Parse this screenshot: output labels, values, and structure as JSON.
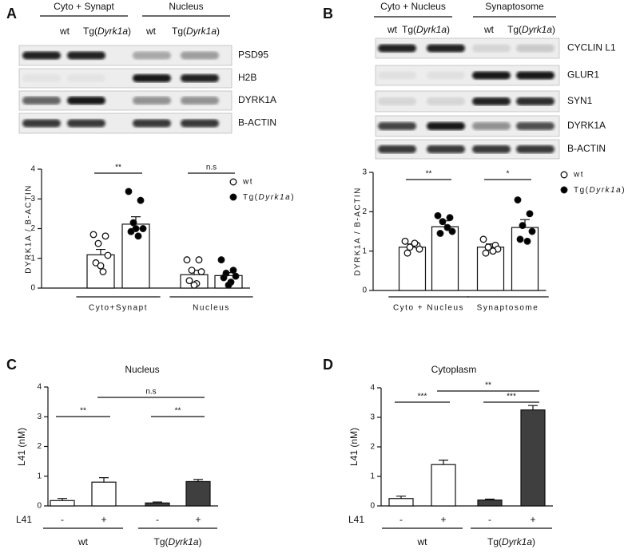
{
  "panel_labels": [
    "A",
    "B",
    "C",
    "D"
  ],
  "blots": [
    {
      "headers": [
        "Cyto + Synapt",
        "Nucleus"
      ],
      "lanes": [
        "wt",
        "Tg(Dyrk1a)",
        "wt",
        "Tg(Dyrk1a)"
      ],
      "rows": [
        "PSD95",
        "H2B",
        "DYRK1A",
        "B-ACTIN"
      ]
    },
    {
      "headers": [
        "Cyto + Nucleus",
        "Synaptosome"
      ],
      "lanes": [
        "wt",
        "Tg(Dyrk1a)",
        "wt",
        "Tg(Dyrk1a)"
      ],
      "rows": [
        "CYCLIN L1",
        "GLUR1",
        "SYN1",
        "DYRK1A",
        "B-ACTIN"
      ]
    }
  ],
  "chart_data": [
    {
      "type": "bar",
      "ylabel": "DYRK1A / B-ACTIN",
      "categories": [
        "Cyto+Synapt",
        "Nucleus"
      ],
      "bar_color": "#ffffff",
      "series": [
        {
          "name": "wt",
          "color": "#ffffff",
          "values": [
            1.12,
            0.45
          ],
          "errors": [
            0.18,
            0.15
          ],
          "points": [
            [
              1.8,
              1.75,
              1.5,
              1.1,
              0.85,
              0.55,
              0.75
            ],
            [
              0.95,
              0.95,
              0.6,
              0.55,
              0.25,
              0.15,
              0.1
            ]
          ]
        },
        {
          "name": "Tg(Dyrk1a)",
          "color": "#000000",
          "values": [
            2.15,
            0.42
          ],
          "errors": [
            0.25,
            0.1
          ],
          "points": [
            [
              3.25,
              2.95,
              2.2,
              2.0,
              1.9,
              1.75,
              2.0
            ],
            [
              0.95,
              0.6,
              0.5,
              0.4,
              0.35,
              0.2,
              0.1
            ]
          ]
        }
      ],
      "ylim": [
        0,
        4
      ],
      "yticks": [
        0,
        1,
        2,
        3,
        4
      ],
      "legend": "right",
      "annotations": [
        {
          "text": "**",
          "between": [
            0,
            1
          ]
        },
        {
          "text": "n.s",
          "between": [
            2,
            3
          ]
        }
      ]
    },
    {
      "type": "bar",
      "ylabel": "DYRK1A / B-ACTIN",
      "categories": [
        "Cyto + Nucleus",
        "Synaptosome"
      ],
      "bar_color": "#ffffff",
      "series": [
        {
          "name": "wt",
          "color": "#ffffff",
          "values": [
            1.1,
            1.1
          ],
          "errors": [
            0.08,
            0.08
          ],
          "points": [
            [
              1.25,
              1.15,
              1.1,
              1.05,
              0.95,
              1.2
            ],
            [
              1.3,
              1.15,
              1.1,
              1.05,
              0.95,
              1.0
            ]
          ]
        },
        {
          "name": "Tg(Dyrk1a)",
          "color": "#000000",
          "values": [
            1.62,
            1.6
          ],
          "errors": [
            0.15,
            0.2
          ],
          "points": [
            [
              1.9,
              1.85,
              1.75,
              1.5,
              1.45,
              1.6
            ],
            [
              2.3,
              1.95,
              1.65,
              1.5,
              1.3,
              1.25
            ]
          ]
        }
      ],
      "ylim": [
        0,
        3
      ],
      "yticks": [
        0,
        1,
        2,
        3
      ],
      "legend": "right",
      "annotations": [
        {
          "text": "**",
          "between": [
            0,
            1
          ]
        },
        {
          "text": "*",
          "between": [
            2,
            3
          ]
        }
      ]
    },
    {
      "type": "bar",
      "title": "Nucleus",
      "ylabel": "L41 (nM)",
      "factor_label": "L41",
      "categories": [
        "-",
        "+",
        "-",
        "+"
      ],
      "groups": [
        "wt",
        "Tg(Dyrk1a)"
      ],
      "values": [
        0.18,
        0.8,
        0.1,
        0.82
      ],
      "errors": [
        0.07,
        0.15,
        0.03,
        0.07
      ],
      "colors": [
        "#ffffff",
        "#ffffff",
        "#3f3f3f",
        "#3f3f3f"
      ],
      "ylim": [
        0,
        4
      ],
      "yticks": [
        0,
        1,
        2,
        3,
        4
      ],
      "annotations": [
        {
          "text": "**",
          "between": [
            0,
            1
          ]
        },
        {
          "text": "n.s",
          "between": [
            1,
            3
          ]
        },
        {
          "text": "**",
          "between": [
            2,
            3
          ]
        }
      ]
    },
    {
      "type": "bar",
      "title": "Cytoplasm",
      "ylabel": "L41 (nM)",
      "factor_label": "L41",
      "categories": [
        "-",
        "+",
        "-",
        "+"
      ],
      "groups": [
        "wt",
        "Tg(Dyrk1a)"
      ],
      "values": [
        0.25,
        1.4,
        0.2,
        3.25
      ],
      "errors": [
        0.08,
        0.15,
        0.03,
        0.15
      ],
      "colors": [
        "#ffffff",
        "#ffffff",
        "#3f3f3f",
        "#3f3f3f"
      ],
      "ylim": [
        0,
        4
      ],
      "yticks": [
        0,
        1,
        2,
        3,
        4
      ],
      "annotations": [
        {
          "text": "***",
          "between": [
            0,
            1
          ]
        },
        {
          "text": "**",
          "between": [
            1,
            3
          ]
        },
        {
          "text": "***",
          "between": [
            2,
            3
          ]
        }
      ]
    }
  ]
}
